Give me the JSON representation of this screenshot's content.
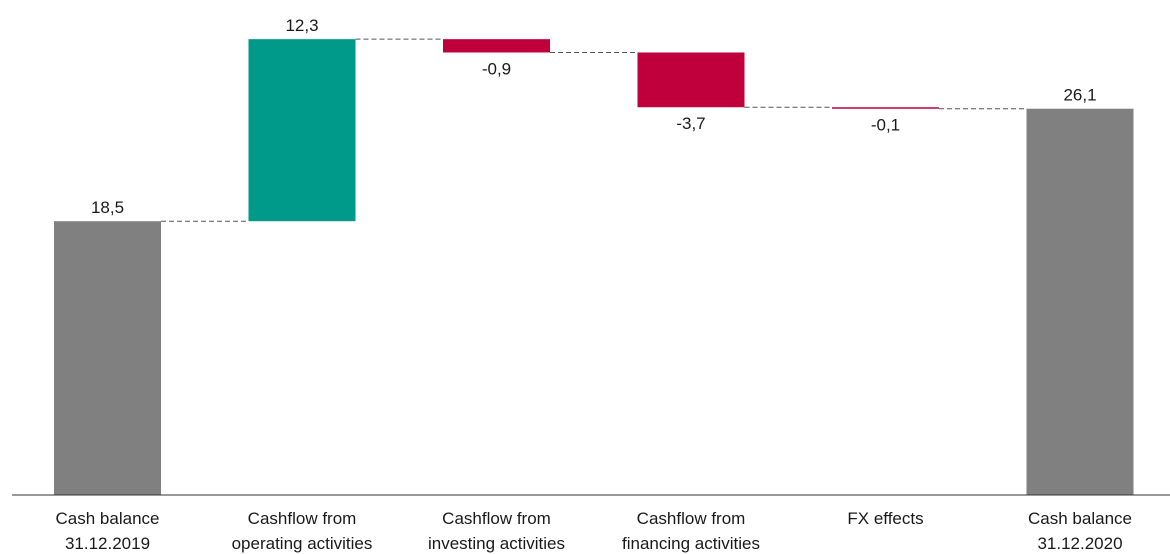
{
  "chart_data": {
    "type": "waterfall",
    "title": "",
    "xlabel": "",
    "ylabel": "",
    "ylim": [
      0,
      27.6
    ],
    "grid": false,
    "legend": "none",
    "categories": [
      [
        "Cash balance",
        "31.12.2019"
      ],
      [
        "Cashflow from",
        "operating activities"
      ],
      [
        "Cashflow from",
        "investing activities"
      ],
      [
        "Cashflow from",
        "financing activities"
      ],
      [
        "FX effects"
      ],
      [
        "Cash balance",
        "31.12.2020"
      ]
    ],
    "values": [
      18.5,
      12.3,
      -0.9,
      -3.7,
      -0.1,
      26.1
    ],
    "value_labels": [
      "18,5",
      "12,3",
      "-0,9",
      "-3,7",
      "-0,1",
      "26,1"
    ],
    "kinds": [
      "total",
      "delta",
      "delta",
      "delta",
      "delta",
      "total"
    ],
    "colors": {
      "total": "#808080",
      "increase": "#009a8b",
      "decrease": "#c0003c",
      "connector": "#555555",
      "axis": "#333333"
    }
  }
}
